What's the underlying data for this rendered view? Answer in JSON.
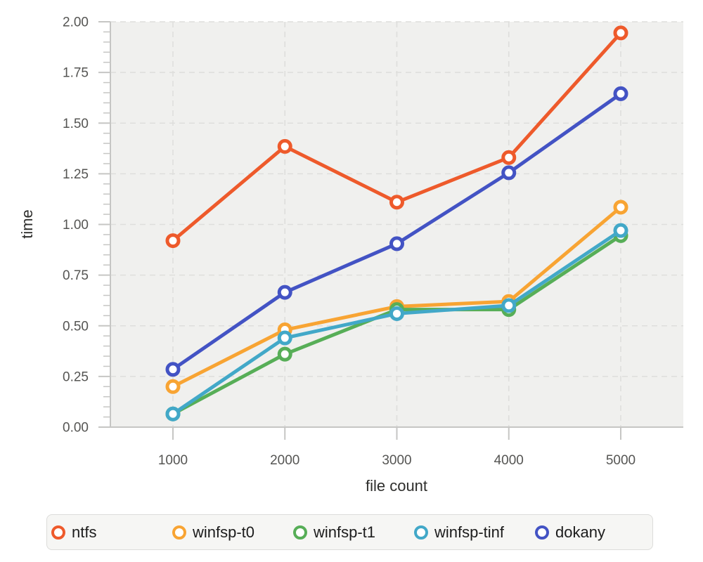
{
  "chart_data": {
    "type": "line",
    "title": "",
    "xlabel": "file count",
    "ylabel": "time",
    "x": [
      1000,
      2000,
      3000,
      4000,
      5000
    ],
    "x_tick_labels": [
      "1000",
      "2000",
      "3000",
      "4000",
      "5000"
    ],
    "y_ticks": [
      0,
      0.25,
      0.5,
      0.75,
      1.0,
      1.25,
      1.5,
      1.75,
      2.0
    ],
    "y_tick_labels": [
      "0.00",
      "0.25",
      "0.50",
      "0.75",
      "1.00",
      "1.25",
      "1.50",
      "1.75",
      "2.00"
    ],
    "ylim": [
      0,
      2
    ],
    "minor_y_tick_step": 0.05,
    "grid": "dashed",
    "legend_position": "bottom",
    "marker_style": "open-circle",
    "series": [
      {
        "name": "ntfs",
        "color": "#ee5a2b",
        "values": [
          0.92,
          1.385,
          1.11,
          1.33,
          1.945
        ]
      },
      {
        "name": "winfsp-t0",
        "color": "#f8a433",
        "values": [
          0.2,
          0.48,
          0.595,
          0.62,
          1.085
        ]
      },
      {
        "name": "winfsp-t1",
        "color": "#57ae57",
        "values": [
          0.065,
          0.36,
          0.58,
          0.58,
          0.945
        ]
      },
      {
        "name": "winfsp-tinf",
        "color": "#42a8c8",
        "values": [
          0.065,
          0.44,
          0.56,
          0.6,
          0.97
        ]
      },
      {
        "name": "dokany",
        "color": "#4353c4",
        "values": [
          0.285,
          0.665,
          0.905,
          1.255,
          1.645
        ]
      }
    ]
  },
  "style_colors": {
    "panel_bg": "#f0f0ee",
    "gridline": "#dededc",
    "axis": "#c6c6c4",
    "tick_label": "#555553",
    "axis_title": "#2e2e2c",
    "legend_bg": "#f6f6f4",
    "legend_border": "#dcdcda",
    "legend_text": "#1c1c1c"
  }
}
